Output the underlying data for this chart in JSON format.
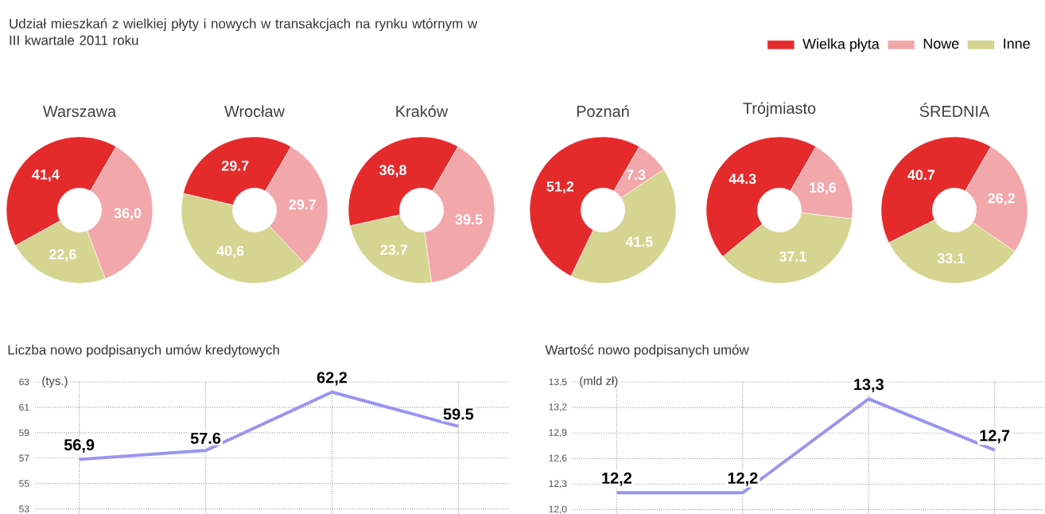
{
  "chart_data": [
    {
      "type": "other",
      "title": "Udział mieszkań z wielkiej płyty i nowych w transakcjach na rynku wtórnym w III kwartale 2011 roku"
    },
    {
      "type": "donut",
      "title": "Warszawa",
      "categories": [
        "Wielka płyta",
        "Nowe",
        "Inne"
      ],
      "legend": "top right",
      "values": [
        41.4,
        36.0,
        22.6
      ],
      "value_labels": [
        "41,4",
        "36,0",
        "22,6"
      ],
      "colors": [
        "#e52a2c",
        "#f2a7ab",
        "#d6d491"
      ]
    },
    {
      "type": "donut",
      "title": "Wrocław",
      "values": [
        29.7,
        29.7,
        40.6
      ],
      "value_labels": [
        "29.7",
        "29.7",
        "40,6"
      ],
      "colors": [
        "#e52a2c",
        "#f2a7ab",
        "#d6d491"
      ]
    },
    {
      "type": "donut",
      "title": "Kraków",
      "values": [
        36.8,
        39.5,
        23.7
      ],
      "value_labels": [
        "36,8",
        "39.5",
        "23.7"
      ],
      "colors": [
        "#e52a2c",
        "#f2a7ab",
        "#d6d491"
      ]
    },
    {
      "type": "donut",
      "title": "Poznań",
      "values": [
        51.2,
        7.3,
        41.5
      ],
      "value_labels": [
        "51,2",
        "7.3",
        "41.5"
      ],
      "colors": [
        "#e52a2c",
        "#f2a7ab",
        "#d6d491"
      ]
    },
    {
      "type": "donut",
      "title": "Trójmiasto",
      "values": [
        44.3,
        18.6,
        37.1
      ],
      "value_labels": [
        "44.3",
        "18,6",
        "37.1"
      ],
      "colors": [
        "#e52a2c",
        "#f2a7ab",
        "#d6d491"
      ]
    },
    {
      "type": "donut",
      "title": "ŚREDNIA",
      "values": [
        40.7,
        26.2,
        33.1
      ],
      "value_labels": [
        "40.7",
        "26,2",
        "33.1"
      ],
      "colors": [
        "#e52a2c",
        "#f2a7ab",
        "#d6d491"
      ]
    },
    {
      "type": "line",
      "title": "Liczba nowo podpisanych umów kredytowych",
      "ylabel": "(tys.)",
      "categories": [
        null,
        null,
        null,
        null
      ],
      "values": [
        56.9,
        57.6,
        62.2,
        59.5
      ],
      "value_labels": [
        "56,9",
        "57.6",
        "62,2",
        "59.5"
      ],
      "color": "#9b93f0",
      "ylim": [
        52.6,
        63
      ],
      "yticks": [
        53,
        55,
        57,
        59,
        61,
        63
      ],
      "grid": true
    },
    {
      "type": "line",
      "title": "Wartość nowo podpisanych umów",
      "ylabel": "(mld zł)",
      "categories": [
        null,
        null,
        null,
        null
      ],
      "values": [
        12.2,
        12.2,
        13.3,
        12.7
      ],
      "value_labels": [
        "12,2",
        "12,2",
        "13,3",
        "12,7"
      ],
      "color": "#9b93f0",
      "ylim": [
        11.95,
        13.5
      ],
      "yticks": [
        {
          "value": 12.0,
          "label": "12,0"
        },
        {
          "value": 12.3,
          "label": "12,3"
        },
        {
          "value": 12.6,
          "label": "12,6"
        },
        {
          "value": 12.9,
          "label": "12,9"
        },
        {
          "value": 13.2,
          "label": "13,2"
        },
        {
          "value": 13.5,
          "label": "13.5"
        }
      ],
      "grid": true
    }
  ]
}
